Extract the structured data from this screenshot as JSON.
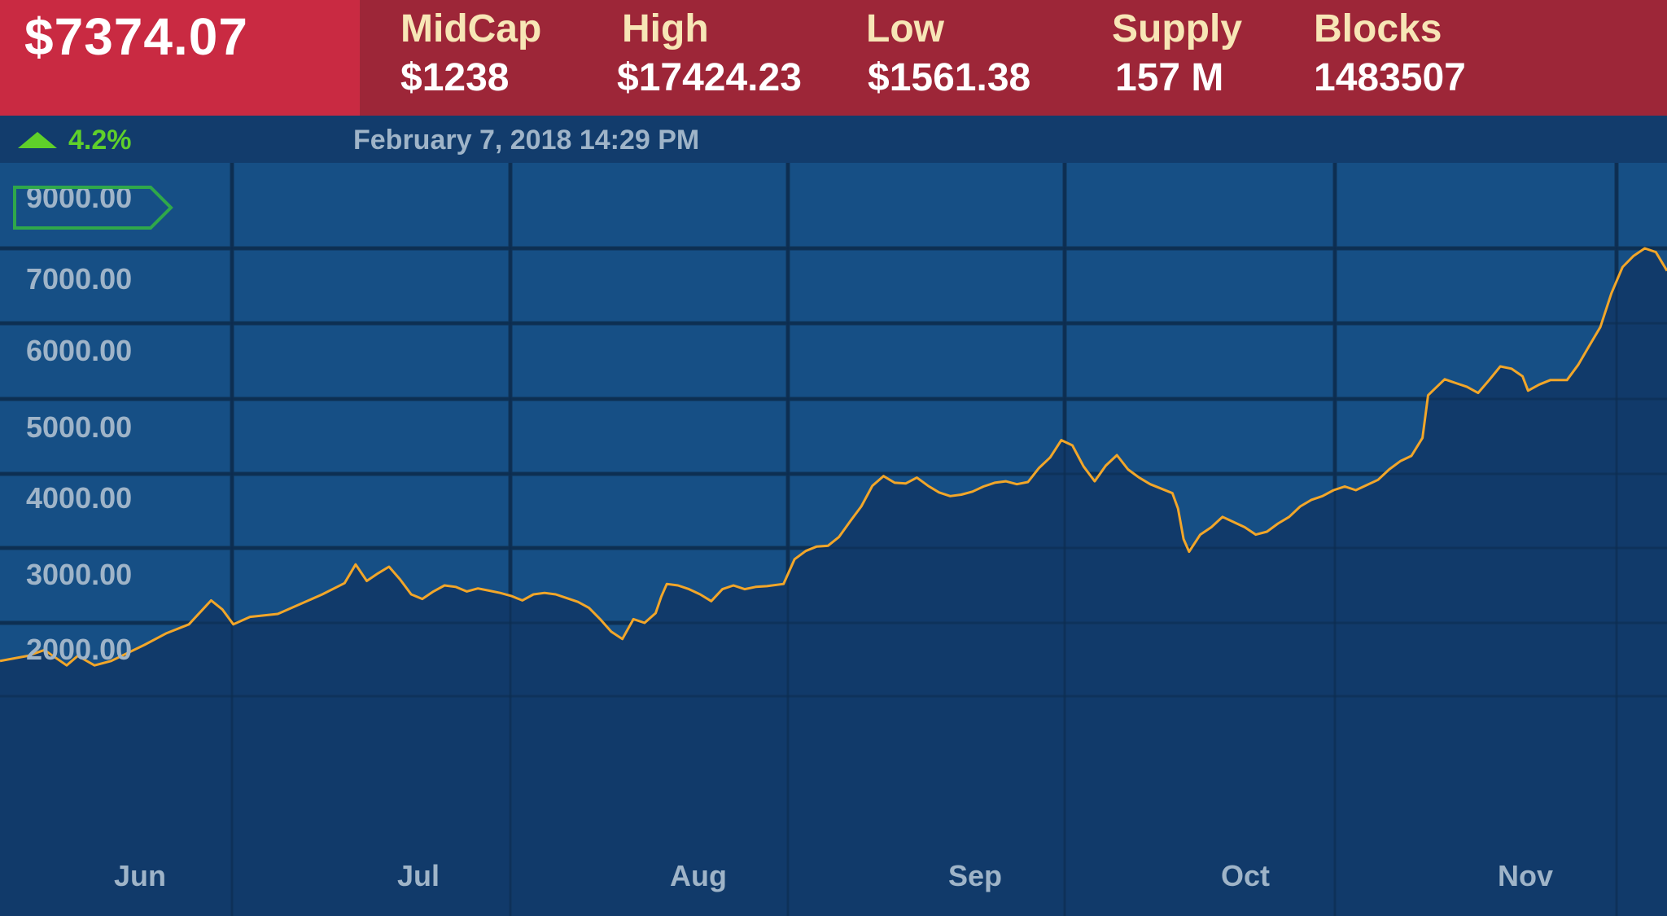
{
  "header": {
    "price": "$7374.07",
    "stats": [
      {
        "label": "MidCap",
        "value": "$1238"
      },
      {
        "label": "High",
        "value": "$17424.23"
      },
      {
        "label": "Low",
        "value": "$1561.38"
      },
      {
        "label": "Supply",
        "value": "157 M"
      },
      {
        "label": "Blocks",
        "value": "1483507"
      }
    ]
  },
  "subheader": {
    "change": "4.2%",
    "timestamp": "February 7, 2018 14:29 PM"
  },
  "colors": {
    "line": "#f2a629",
    "price_box": "#c92a42",
    "header": "#9d2638",
    "up": "#5fd02a",
    "plot_bg": "#164f85",
    "area": "#113a6a"
  },
  "chart_data": {
    "type": "area",
    "title": "",
    "xlabel": "",
    "ylabel": "",
    "ytick_labels": [
      "9000.00",
      "7000.00",
      "6000.00",
      "5000.00",
      "4000.00",
      "3000.00",
      "2000.00"
    ],
    "highlighted_ytick": "9000.00",
    "x_ticks": [
      "Jun",
      "Jul",
      "Aug",
      "Sep",
      "Oct",
      "Nov"
    ],
    "grid": true,
    "series": [
      {
        "values": [
          [
            0,
            1480
          ],
          [
            5,
            1550
          ],
          [
            8,
            1630
          ],
          [
            12,
            1420
          ],
          [
            14,
            1550
          ],
          [
            17,
            1420
          ],
          [
            20,
            1480
          ],
          [
            26,
            1700
          ],
          [
            30,
            1860
          ],
          [
            34,
            1980
          ],
          [
            38,
            2300
          ],
          [
            40,
            2180
          ],
          [
            42,
            1980
          ],
          [
            45,
            2080
          ],
          [
            50,
            2120
          ],
          [
            54,
            2250
          ],
          [
            58,
            2380
          ],
          [
            62,
            2530
          ],
          [
            64,
            2780
          ],
          [
            66,
            2560
          ],
          [
            68,
            2660
          ],
          [
            70,
            2750
          ],
          [
            72,
            2580
          ],
          [
            74,
            2380
          ],
          [
            76,
            2320
          ],
          [
            78,
            2420
          ],
          [
            80,
            2500
          ],
          [
            82,
            2480
          ],
          [
            84,
            2420
          ],
          [
            86,
            2460
          ],
          [
            88,
            2430
          ],
          [
            90,
            2400
          ],
          [
            92,
            2360
          ],
          [
            94,
            2300
          ],
          [
            96,
            2380
          ],
          [
            98,
            2400
          ],
          [
            100,
            2380
          ],
          [
            102,
            2330
          ],
          [
            104,
            2280
          ],
          [
            106,
            2200
          ],
          [
            108,
            2050
          ],
          [
            110,
            1880
          ],
          [
            112,
            1780
          ],
          [
            114,
            2050
          ],
          [
            116,
            2000
          ],
          [
            118,
            2130
          ],
          [
            119,
            2350
          ],
          [
            120,
            2520
          ],
          [
            122,
            2500
          ],
          [
            124,
            2450
          ],
          [
            126,
            2380
          ],
          [
            128,
            2290
          ],
          [
            130,
            2450
          ],
          [
            132,
            2500
          ],
          [
            134,
            2450
          ],
          [
            136,
            2480
          ],
          [
            138,
            2490
          ],
          [
            141,
            2520
          ],
          [
            143,
            2850
          ],
          [
            145,
            2960
          ],
          [
            147,
            3020
          ],
          [
            149,
            3030
          ],
          [
            151,
            3150
          ],
          [
            153,
            3360
          ],
          [
            155,
            3560
          ],
          [
            157,
            3840
          ],
          [
            159,
            3970
          ],
          [
            161,
            3880
          ],
          [
            163,
            3870
          ],
          [
            165,
            3950
          ],
          [
            167,
            3840
          ],
          [
            169,
            3750
          ],
          [
            171,
            3700
          ],
          [
            173,
            3720
          ],
          [
            175,
            3760
          ],
          [
            177,
            3830
          ],
          [
            179,
            3880
          ],
          [
            181,
            3900
          ],
          [
            183,
            3860
          ],
          [
            185,
            3890
          ],
          [
            187,
            4080
          ],
          [
            189,
            4220
          ],
          [
            191,
            4450
          ],
          [
            193,
            4380
          ],
          [
            195,
            4100
          ],
          [
            197,
            3900
          ],
          [
            199,
            4110
          ],
          [
            201,
            4250
          ],
          [
            203,
            4060
          ],
          [
            205,
            3950
          ],
          [
            207,
            3860
          ],
          [
            209,
            3800
          ],
          [
            211,
            3740
          ],
          [
            212,
            3530
          ],
          [
            213,
            3120
          ],
          [
            214,
            2950
          ],
          [
            216,
            3180
          ],
          [
            218,
            3280
          ],
          [
            220,
            3420
          ],
          [
            222,
            3350
          ],
          [
            224,
            3280
          ],
          [
            226,
            3180
          ],
          [
            228,
            3220
          ],
          [
            230,
            3330
          ],
          [
            232,
            3420
          ],
          [
            234,
            3560
          ],
          [
            236,
            3650
          ],
          [
            238,
            3700
          ],
          [
            240,
            3780
          ],
          [
            242,
            3830
          ],
          [
            244,
            3780
          ],
          [
            246,
            3850
          ],
          [
            248,
            3920
          ],
          [
            250,
            4060
          ],
          [
            252,
            4170
          ],
          [
            254,
            4240
          ],
          [
            256,
            4480
          ],
          [
            257,
            5050
          ],
          [
            258,
            5120
          ],
          [
            260,
            5260
          ],
          [
            262,
            5210
          ],
          [
            264,
            5160
          ],
          [
            266,
            5080
          ],
          [
            268,
            5250
          ],
          [
            270,
            5430
          ],
          [
            272,
            5400
          ],
          [
            274,
            5300
          ],
          [
            275,
            5110
          ],
          [
            277,
            5190
          ],
          [
            279,
            5250
          ],
          [
            282,
            5250
          ],
          [
            284,
            5450
          ],
          [
            286,
            5700
          ],
          [
            288,
            5950
          ],
          [
            290,
            6400
          ],
          [
            292,
            6750
          ],
          [
            294,
            6900
          ],
          [
            296,
            7000
          ],
          [
            298,
            6950
          ],
          [
            300,
            6700
          ]
        ]
      }
    ]
  }
}
